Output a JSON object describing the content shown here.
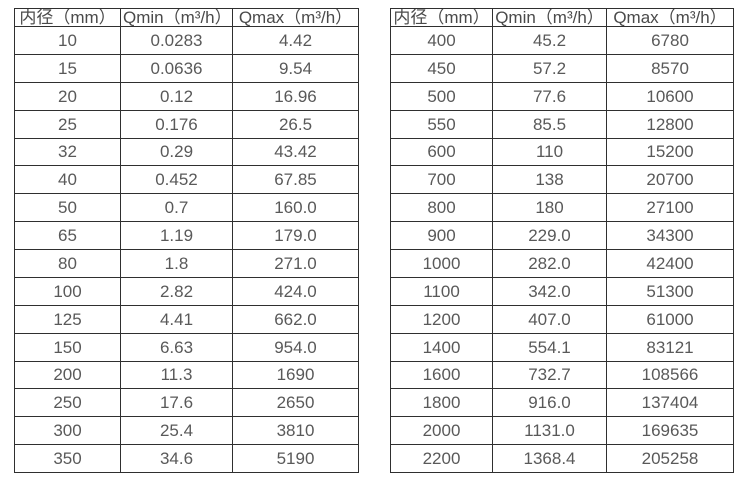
{
  "colors": {
    "background": "#ffffff",
    "border": "#2f2f2f",
    "header_text": "#4a4a4a",
    "cell_text": "#595959"
  },
  "tables": [
    {
      "name": "flow-rate-table-small-diameters",
      "headers": [
        "内径（mm）",
        "Qmin（m³/h）",
        "Qmax（m³/h）"
      ],
      "rows": [
        [
          "10",
          "0.0283",
          "4.42"
        ],
        [
          "15",
          "0.0636",
          "9.54"
        ],
        [
          "20",
          "0.12",
          "16.96"
        ],
        [
          "25",
          "0.176",
          "26.5"
        ],
        [
          "32",
          "0.29",
          "43.42"
        ],
        [
          "40",
          "0.452",
          "67.85"
        ],
        [
          "50",
          "0.7",
          "160.0"
        ],
        [
          "65",
          "1.19",
          "179.0"
        ],
        [
          "80",
          "1.8",
          "271.0"
        ],
        [
          "100",
          "2.82",
          "424.0"
        ],
        [
          "125",
          "4.41",
          "662.0"
        ],
        [
          "150",
          "6.63",
          "954.0"
        ],
        [
          "200",
          "11.3",
          "1690"
        ],
        [
          "250",
          "17.6",
          "2650"
        ],
        [
          "300",
          "25.4",
          "3810"
        ],
        [
          "350",
          "34.6",
          "5190"
        ]
      ]
    },
    {
      "name": "flow-rate-table-large-diameters",
      "headers": [
        "内径（mm）",
        "Qmin（m³/h）",
        "Qmax（m³/h）"
      ],
      "rows": [
        [
          "400",
          "45.2",
          "6780"
        ],
        [
          "450",
          "57.2",
          "8570"
        ],
        [
          "500",
          "77.6",
          "10600"
        ],
        [
          "550",
          "85.5",
          "12800"
        ],
        [
          "600",
          "110",
          "15200"
        ],
        [
          "700",
          "138",
          "20700"
        ],
        [
          "800",
          "180",
          "27100"
        ],
        [
          "900",
          "229.0",
          "34300"
        ],
        [
          "1000",
          "282.0",
          "42400"
        ],
        [
          "1100",
          "342.0",
          "51300"
        ],
        [
          "1200",
          "407.0",
          "61000"
        ],
        [
          "1400",
          "554.1",
          "83121"
        ],
        [
          "1600",
          "732.7",
          "108566"
        ],
        [
          "1800",
          "916.0",
          "137404"
        ],
        [
          "2000",
          "1131.0",
          "169635"
        ],
        [
          "2200",
          "1368.4",
          "205258"
        ]
      ]
    }
  ]
}
